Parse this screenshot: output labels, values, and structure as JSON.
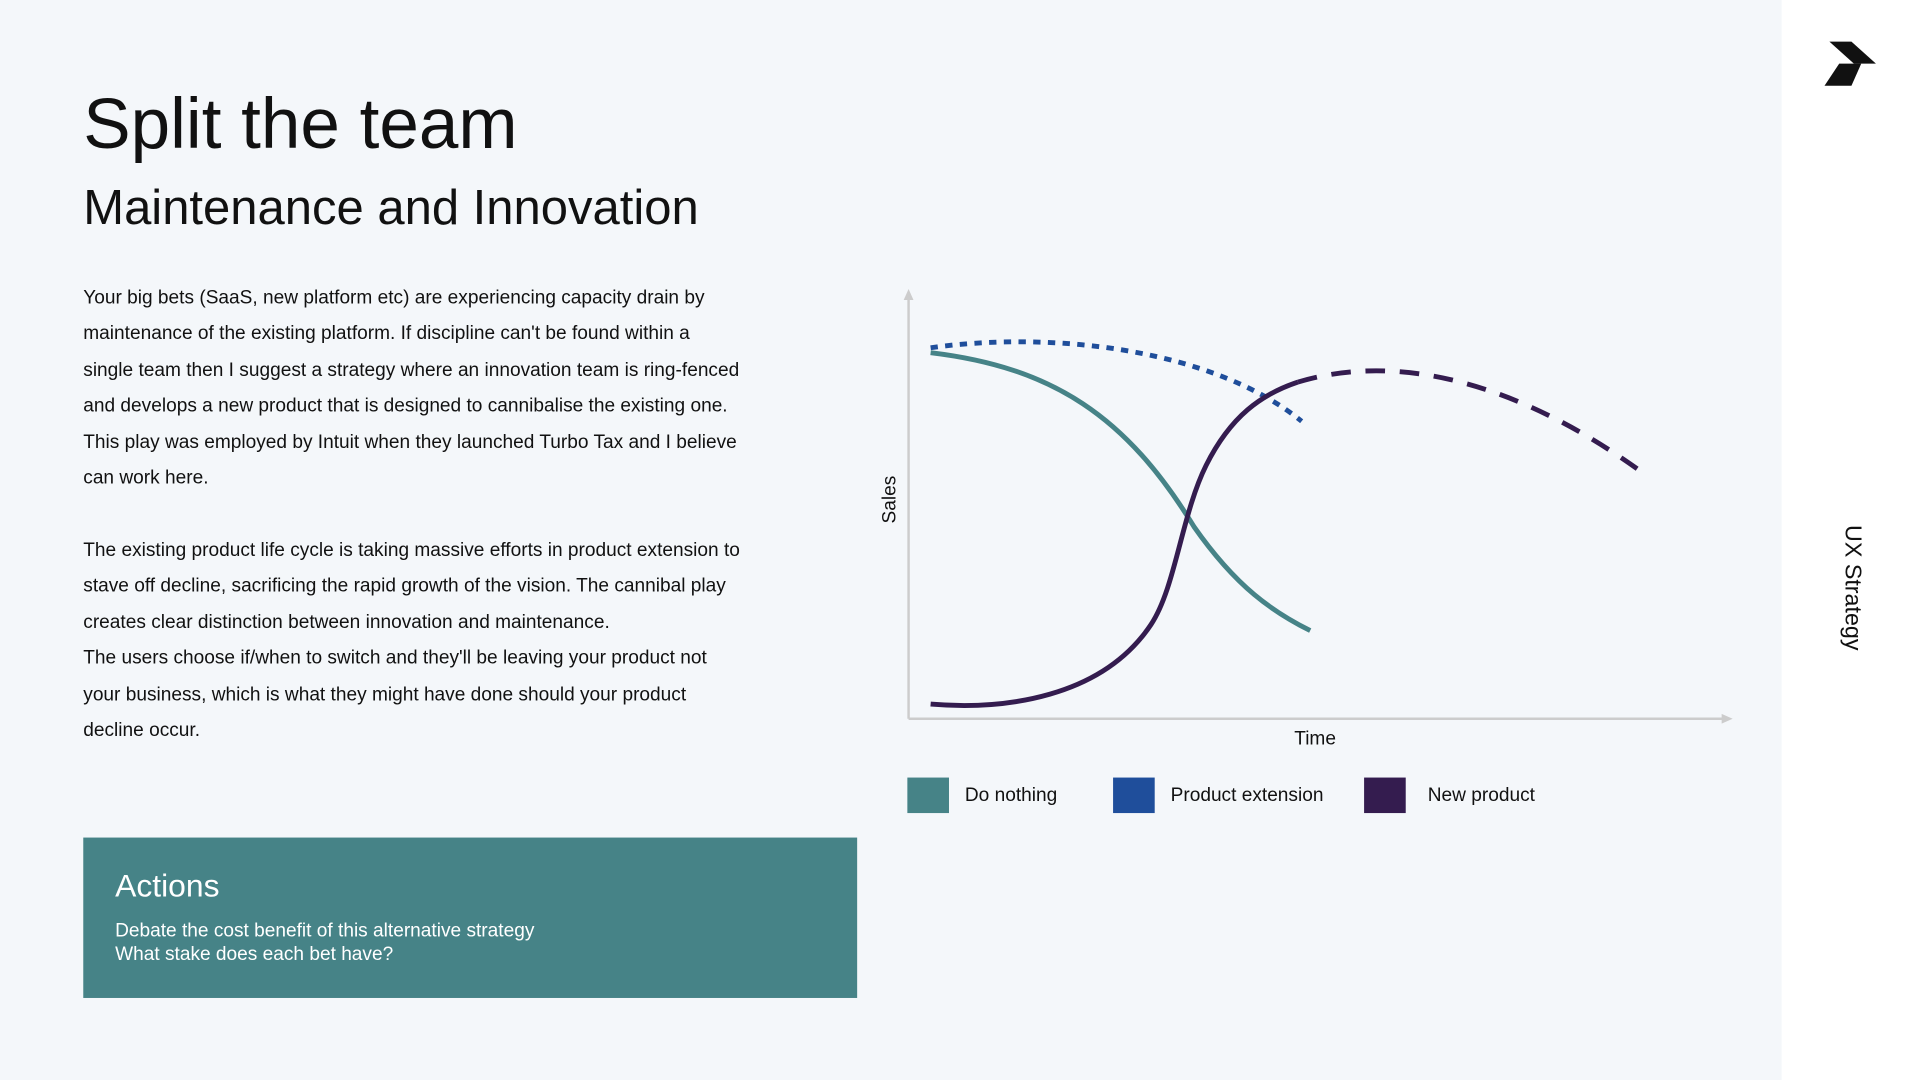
{
  "header": {
    "title": "Split the team",
    "subtitle": "Maintenance and Innovation"
  },
  "body": {
    "paragraphs": [
      [
        "Your big bets (SaaS, new platform etc) are experiencing capacity drain by",
        "maintenance of the existing platform. If discipline can't be found within a",
        "single team then I suggest a strategy where an innovation team is ring-fenced",
        "and develops a new product that is designed to cannibalise the existing one.",
        "This play was employed by Intuit when they launched Turbo Tax and I believe",
        "can work here."
      ],
      [
        "The existing product life cycle is taking massive efforts in product extension to",
        "stave off decline, sacrificing the rapid growth of the vision. The cannibal play",
        "creates clear distinction between innovation and maintenance.",
        "The users choose if/when to switch and they'll be leaving your product not",
        "your business, which is what they might have done should your product",
        "decline occur."
      ]
    ]
  },
  "actions": {
    "title": "Actions",
    "items": [
      "Debate the cost benefit of this alternative strategy",
      "What stake does each bet have?"
    ]
  },
  "diagram": {
    "y_label": "Sales",
    "x_label": "Time",
    "legend": [
      {
        "name": "Do nothing",
        "color": "#468387"
      },
      {
        "name": "Product extension",
        "color": "#1f4e9b"
      },
      {
        "name": "New product",
        "color": "#341c4f"
      }
    ]
  },
  "sidebar": {
    "label": "UX Strategy"
  }
}
